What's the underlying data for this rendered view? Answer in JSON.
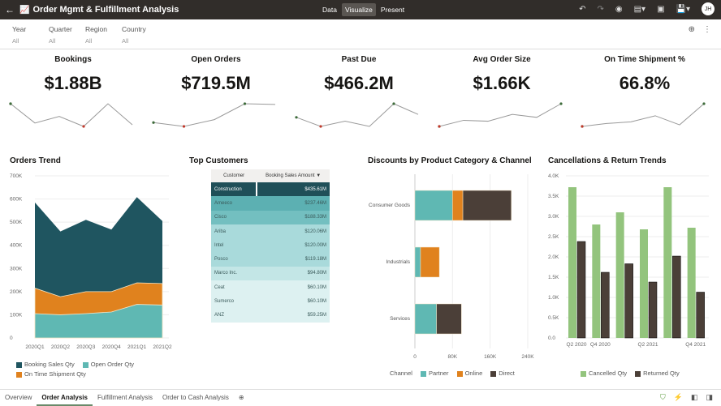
{
  "header": {
    "title": "Order Mgmt & Fulfillment Analysis",
    "modes": [
      "Data",
      "Visualize",
      "Present"
    ],
    "active_mode": "Visualize",
    "user_initials": "JH"
  },
  "filters": [
    {
      "label": "Year",
      "value": "All"
    },
    {
      "label": "Quarter",
      "value": "All"
    },
    {
      "label": "Region",
      "value": "All"
    },
    {
      "label": "Country",
      "value": "All"
    }
  ],
  "kpis": [
    {
      "label": "Bookings",
      "value": "$1.88B",
      "trend": [
        100,
        15,
        44,
        0,
        100,
        7
      ]
    },
    {
      "label": "Open Orders",
      "value": "$719.5M",
      "trend": [
        17,
        0,
        30,
        100,
        97
      ]
    },
    {
      "label": "Past Due",
      "value": "$466.2M",
      "trend": [
        40,
        0,
        23,
        0,
        100,
        53
      ]
    },
    {
      "label": "Avg Order Size",
      "value": "$1.66K",
      "trend": [
        0,
        27,
        23,
        53,
        40,
        100
      ]
    },
    {
      "label": "On Time Shipment %",
      "value": "66.8%",
      "trend": [
        0,
        13,
        20,
        47,
        7,
        100
      ]
    }
  ],
  "colors": {
    "dark_teal": "#1f5560",
    "teal": "#5fb8b3",
    "orange": "#e0821e",
    "brown": "#4b3f38",
    "green": "#93c47d",
    "up": "#3d6b3a",
    "down": "#c0392b"
  },
  "top_customers": {
    "title": "Top Customers",
    "columns": [
      "Customer",
      "Booking Sales Amount"
    ],
    "rows": [
      [
        "Construction",
        "$435.61M"
      ],
      [
        "Ameeco",
        "$237.46M"
      ],
      [
        "Cisco",
        "$188.33M"
      ],
      [
        "Ariba",
        "$120.06M"
      ],
      [
        "Intel",
        "$120.00M"
      ],
      [
        "Posco",
        "$119.18M"
      ],
      [
        "Marco Inc.",
        "$94.80M"
      ],
      [
        "Ceat",
        "$60.10M"
      ],
      [
        "Sumerco",
        "$60.10M"
      ],
      [
        "ANZ",
        "$59.25M"
      ]
    ]
  },
  "chart_data": [
    {
      "type": "area",
      "title": "Orders Trend",
      "categories": [
        "2020Q1",
        "2020Q2",
        "2020Q3",
        "2020Q4",
        "2021Q1",
        "2021Q2"
      ],
      "ylim": [
        0,
        700000
      ],
      "yticks": [
        "0",
        "100K",
        "200K",
        "300K",
        "400K",
        "500K",
        "600K",
        "700K"
      ],
      "legend": "bottom",
      "series": [
        {
          "name": "Booking Sales Qty",
          "values": [
            585000,
            460000,
            510000,
            468000,
            608000,
            505000
          ]
        },
        {
          "name": "On Time Shipment Qty",
          "values": [
            215000,
            178000,
            200000,
            200000,
            238000,
            235000
          ]
        },
        {
          "name": "Open Order Qty",
          "values": [
            105000,
            100000,
            105000,
            112000,
            145000,
            142000
          ]
        }
      ]
    },
    {
      "type": "bar",
      "orientation": "horizontal",
      "stacked": true,
      "title": "Discounts by Product Category & Channel",
      "categories": [
        "Consumer Goods",
        "Industrials",
        "Services"
      ],
      "xlim": [
        0,
        240000
      ],
      "xticks": [
        "0",
        "80K",
        "160K",
        "240K"
      ],
      "legend_title": "Channel",
      "legend": "bottom",
      "series": [
        {
          "name": "Partner",
          "values": [
            80000,
            12000,
            46000
          ]
        },
        {
          "name": "Online",
          "values": [
            22000,
            40000,
            0
          ]
        },
        {
          "name": "Direct",
          "values": [
            103000,
            0,
            53000
          ]
        }
      ]
    },
    {
      "type": "bar",
      "title": "Cancellations & Return Trends",
      "categories": [
        "Q2 2020",
        "Q4 2020",
        "",
        "Q2 2021",
        "",
        "Q4 2021"
      ],
      "ylim": [
        0,
        4000
      ],
      "yticks": [
        "0.0",
        "0.5K",
        "1.0K",
        "1.5K",
        "2.0K",
        "2.5K",
        "3.0K",
        "3.5K",
        "4.0K"
      ],
      "legend": "bottom",
      "series": [
        {
          "name": "Cancelled Qty",
          "values": [
            3720,
            2800,
            3100,
            2680,
            3720,
            2720
          ]
        },
        {
          "name": "Returned Qty",
          "values": [
            2380,
            1620,
            1830,
            1380,
            2020,
            1130
          ]
        }
      ]
    }
  ],
  "bottom_tabs": [
    "Overview",
    "Order Analysis",
    "Fulfillment Analysis",
    "Order to Cash Analysis"
  ],
  "active_tab": "Order Analysis"
}
